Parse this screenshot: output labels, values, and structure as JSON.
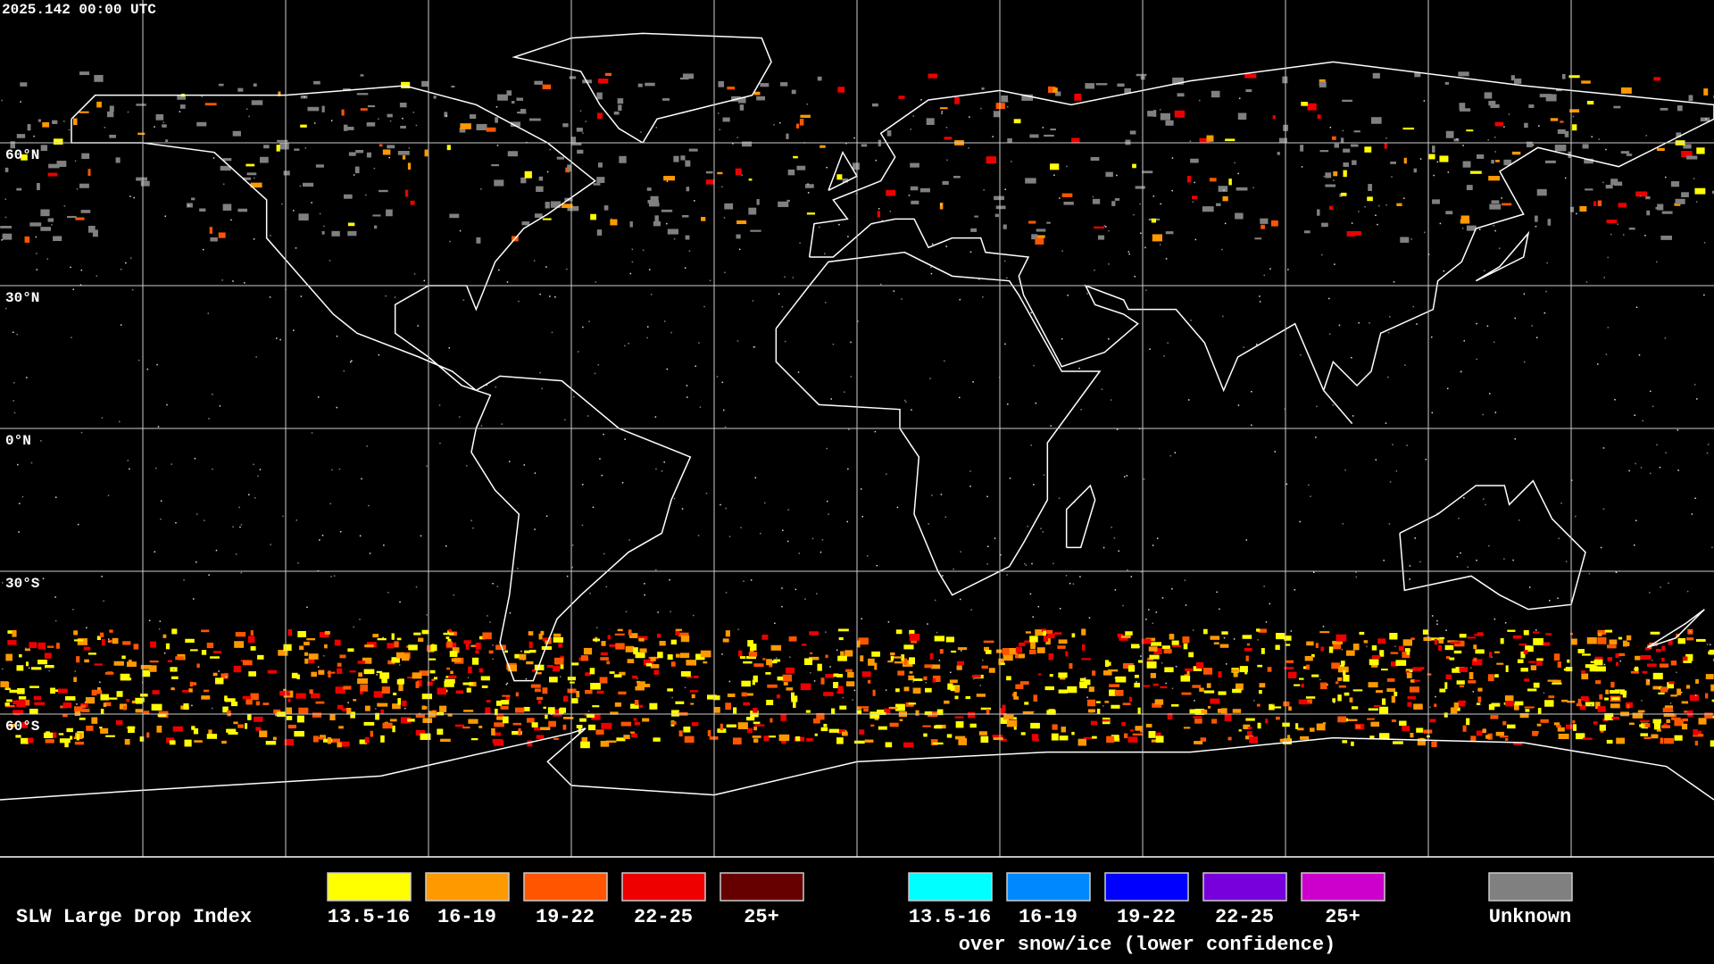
{
  "header": {
    "timestamp": "2025.142 00:00 UTC"
  },
  "map": {
    "latitude_labels": [
      "60°N",
      "30°N",
      "0°N",
      "30°S",
      "60°S"
    ]
  },
  "legend": {
    "title": "SLW Large Drop Index",
    "groups": [
      {
        "items": [
          {
            "label": "13.5-16",
            "color": "#ffff00"
          },
          {
            "label": "16-19",
            "color": "#ff9900"
          },
          {
            "label": "19-22",
            "color": "#ff5500"
          },
          {
            "label": "22-25",
            "color": "#ee0000"
          },
          {
            "label": "25+",
            "color": "#660000"
          }
        ]
      },
      {
        "items": [
          {
            "label": "13.5-16",
            "color": "#00ffff"
          },
          {
            "label": "16-19",
            "color": "#0088ff"
          },
          {
            "label": "19-22",
            "color": "#0000ff"
          },
          {
            "label": "22-25",
            "color": "#7700dd"
          },
          {
            "label": "25+",
            "color": "#cc00cc"
          }
        ],
        "caption": "over snow/ice (lower confidence)"
      },
      {
        "items": [
          {
            "label": "Unknown",
            "color": "#808080"
          }
        ]
      }
    ]
  }
}
